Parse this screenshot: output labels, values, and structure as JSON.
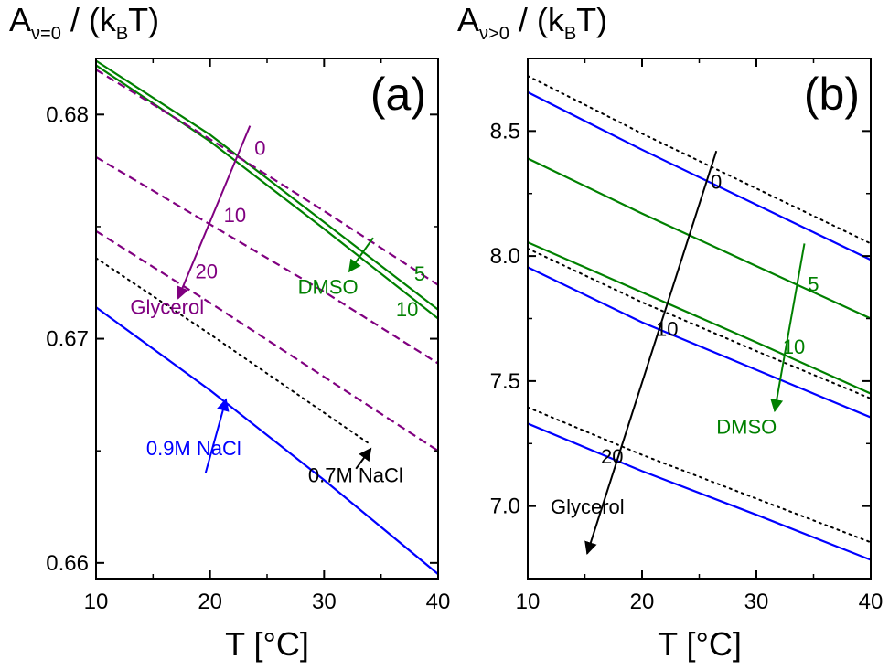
{
  "chart_data": [
    {
      "type": "line",
      "panel_label": "(a)",
      "ylabel": {
        "main": "A",
        "sub": "ν=0",
        "mid": " / (k",
        "sub2": "B",
        "end": "T)"
      },
      "xlabel": "T [°C]",
      "xlim": [
        10,
        40
      ],
      "ylim": [
        0.6593,
        0.6825
      ],
      "xticks": [
        10,
        20,
        30,
        40
      ],
      "yticks": [
        0.66,
        0.67,
        0.68
      ],
      "ytick_labels": [
        "0.66",
        "0.67",
        "0.68"
      ],
      "series": [
        {
          "group": "DMSO",
          "name": "5",
          "color": "#008000",
          "dash": "solid",
          "x": [
            10,
            20,
            30,
            40
          ],
          "y": [
            0.6824,
            0.6791,
            0.6752,
            0.6713
          ]
        },
        {
          "group": "DMSO",
          "name": "10",
          "color": "#008000",
          "dash": "solid",
          "x": [
            10,
            20,
            30,
            40
          ],
          "y": [
            0.6822,
            0.6788,
            0.6749,
            0.6709
          ]
        },
        {
          "group": "Glycerol",
          "name": "0",
          "color": "#800080",
          "dash": "dashed",
          "x": [
            10,
            20,
            30,
            40
          ],
          "y": [
            0.682,
            0.6789,
            0.6757,
            0.6724
          ]
        },
        {
          "group": "Glycerol",
          "name": "10",
          "color": "#800080",
          "dash": "dashed",
          "x": [
            10,
            20,
            30,
            40
          ],
          "y": [
            0.6781,
            0.6751,
            0.6721,
            0.6689
          ]
        },
        {
          "group": "Glycerol",
          "name": "20",
          "color": "#800080",
          "dash": "dashed",
          "x": [
            10,
            20,
            30,
            40
          ],
          "y": [
            0.6748,
            0.6716,
            0.6683,
            0.665
          ]
        },
        {
          "group": "NaCl",
          "name": "0.7M NaCl",
          "color": "#000000",
          "dash": "dotted",
          "x": [
            10,
            20,
            30,
            34
          ],
          "y": [
            0.6736,
            0.6702,
            0.6667,
            0.6653
          ]
        },
        {
          "group": "NaCl",
          "name": "0.9M NaCl",
          "color": "#0000ff",
          "dash": "solid",
          "x": [
            10,
            20,
            30,
            40
          ],
          "y": [
            0.6714,
            0.6677,
            0.6637,
            0.6595
          ]
        }
      ],
      "annotations": [
        {
          "text": "0",
          "color": "#800080",
          "x": 23.9,
          "y": 0.6782
        },
        {
          "text": "10",
          "color": "#800080",
          "x": 21.2,
          "y": 0.6752
        },
        {
          "text": "20",
          "color": "#800080",
          "x": 18.7,
          "y": 0.6727
        },
        {
          "text": "Glycerol",
          "color": "#800080",
          "x": 13.0,
          "y": 0.6711
        },
        {
          "text": "DMSO",
          "color": "#008000",
          "x": 27.7,
          "y": 0.672
        },
        {
          "text": "5",
          "color": "#008000",
          "x": 37.9,
          "y": 0.6726
        },
        {
          "text": "10",
          "color": "#008000",
          "x": 36.3,
          "y": 0.671
        },
        {
          "text": "0.9M NaCl",
          "color": "#0000ff",
          "x": 14.4,
          "y": 0.6648
        },
        {
          "text": "0.7M NaCl",
          "color": "#000000",
          "x": 28.6,
          "y": 0.6636
        }
      ],
      "arrows": [
        {
          "color": "#800080",
          "from": [
            23.5,
            0.6795
          ],
          "to": [
            17.2,
            0.6718
          ]
        },
        {
          "color": "#008000",
          "from": [
            34.3,
            0.6745
          ],
          "to": [
            32.2,
            0.673
          ]
        },
        {
          "color": "#0000ff",
          "from": [
            19.6,
            0.664
          ],
          "to": [
            21.4,
            0.6673
          ]
        },
        {
          "color": "#000000",
          "from": [
            32.8,
            0.6642
          ],
          "to": [
            34.1,
            0.6651
          ]
        }
      ]
    },
    {
      "type": "line",
      "panel_label": "(b)",
      "ylabel": {
        "main": "A",
        "sub": "ν>0",
        "mid": " / (k",
        "sub2": "B",
        "end": "T)"
      },
      "xlabel": "T [°C]",
      "xlim": [
        10,
        40
      ],
      "ylim": [
        6.71,
        8.79
      ],
      "xticks": [
        10,
        20,
        30,
        40
      ],
      "yticks": [
        7.0,
        7.5,
        8.0,
        8.5
      ],
      "ytick_labels": [
        "7.0",
        "7.5",
        "8.0",
        "8.5"
      ],
      "series": [
        {
          "group": "Glycerol",
          "name": "0",
          "color": "#0000ff",
          "dash": "solid",
          "x": [
            10,
            20,
            30,
            40
          ],
          "y": [
            8.655,
            8.425,
            8.205,
            7.985
          ]
        },
        {
          "group": "Glycerol",
          "name": "10",
          "color": "#0000ff",
          "dash": "solid",
          "x": [
            10,
            20,
            30,
            40
          ],
          "y": [
            7.955,
            7.735,
            7.545,
            7.355
          ]
        },
        {
          "group": "Glycerol",
          "name": "20",
          "color": "#0000ff",
          "dash": "solid",
          "x": [
            10,
            20,
            30,
            40
          ],
          "y": [
            7.33,
            7.14,
            6.965,
            6.785
          ]
        },
        {
          "group": "DMSO",
          "name": "5",
          "color": "#008000",
          "dash": "solid",
          "x": [
            10,
            20,
            30,
            40
          ],
          "y": [
            8.39,
            8.17,
            7.96,
            7.75
          ]
        },
        {
          "group": "DMSO",
          "name": "10",
          "color": "#008000",
          "dash": "solid",
          "x": [
            10,
            20,
            30,
            40
          ],
          "y": [
            8.055,
            7.855,
            7.655,
            7.45
          ]
        },
        {
          "group": "",
          "name": "",
          "color": "#000000",
          "dash": "dotted",
          "x": [
            10,
            20,
            30,
            40
          ],
          "y": [
            8.72,
            8.49,
            8.27,
            8.05
          ]
        },
        {
          "group": "",
          "name": "",
          "color": "#000000",
          "dash": "dotted",
          "x": [
            10,
            20,
            30,
            40
          ],
          "y": [
            8.03,
            7.815,
            7.62,
            7.43
          ]
        },
        {
          "group": "",
          "name": "",
          "color": "#000000",
          "dash": "dotted",
          "x": [
            10,
            20,
            30,
            40
          ],
          "y": [
            7.395,
            7.205,
            7.03,
            6.855
          ]
        }
      ],
      "annotations": [
        {
          "text": "0",
          "color": "#000000",
          "x": 26.0,
          "y": 8.27
        },
        {
          "text": "10",
          "color": "#000000",
          "x": 21.2,
          "y": 7.68
        },
        {
          "text": "20",
          "color": "#000000",
          "x": 16.4,
          "y": 7.17
        },
        {
          "text": "Glycerol",
          "color": "#000000",
          "x": 12.0,
          "y": 6.97
        },
        {
          "text": "5",
          "color": "#008000",
          "x": 34.5,
          "y": 7.86
        },
        {
          "text": "10",
          "color": "#008000",
          "x": 32.3,
          "y": 7.61
        },
        {
          "text": "DMSO",
          "color": "#008000",
          "x": 26.5,
          "y": 7.29
        }
      ],
      "arrows": [
        {
          "color": "#000000",
          "from": [
            26.5,
            8.42
          ],
          "to": [
            15.2,
            6.81
          ]
        },
        {
          "color": "#008000",
          "from": [
            34.2,
            8.05
          ],
          "to": [
            31.6,
            7.38
          ]
        }
      ]
    }
  ]
}
